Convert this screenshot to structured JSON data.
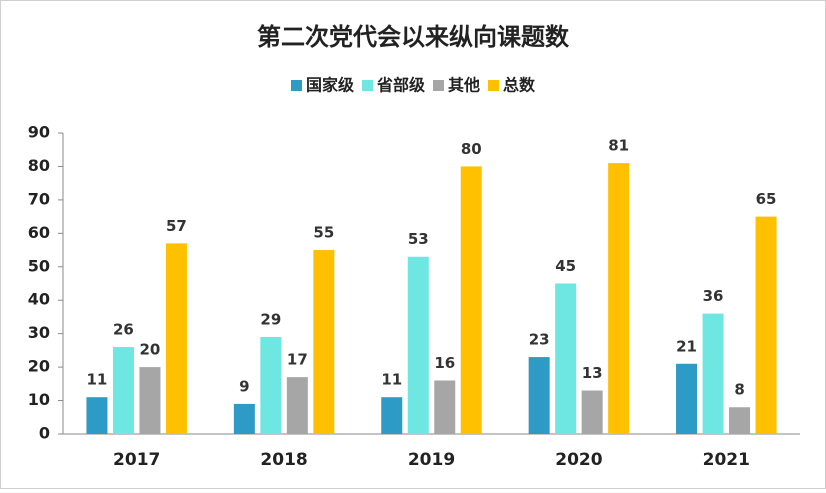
{
  "chart_data": {
    "type": "bar",
    "title": "第二次党代会以来纵向课题数",
    "categories": [
      "2017",
      "2018",
      "2019",
      "2020",
      "2021"
    ],
    "series": [
      {
        "name": "国家级",
        "color": "#2e9ac6",
        "values": [
          11,
          9,
          11,
          23,
          21
        ]
      },
      {
        "name": "省部级",
        "color": "#6ee6e2",
        "values": [
          26,
          29,
          53,
          45,
          36
        ]
      },
      {
        "name": "其他",
        "color": "#a6a6a6",
        "values": [
          20,
          17,
          16,
          13,
          8
        ]
      },
      {
        "name": "总数",
        "color": "#ffc000",
        "values": [
          57,
          55,
          80,
          81,
          65
        ]
      }
    ],
    "ylim": [
      0,
      90
    ],
    "yticks": [
      0,
      10,
      20,
      30,
      40,
      50,
      60,
      70,
      80,
      90
    ],
    "legend": "top"
  }
}
